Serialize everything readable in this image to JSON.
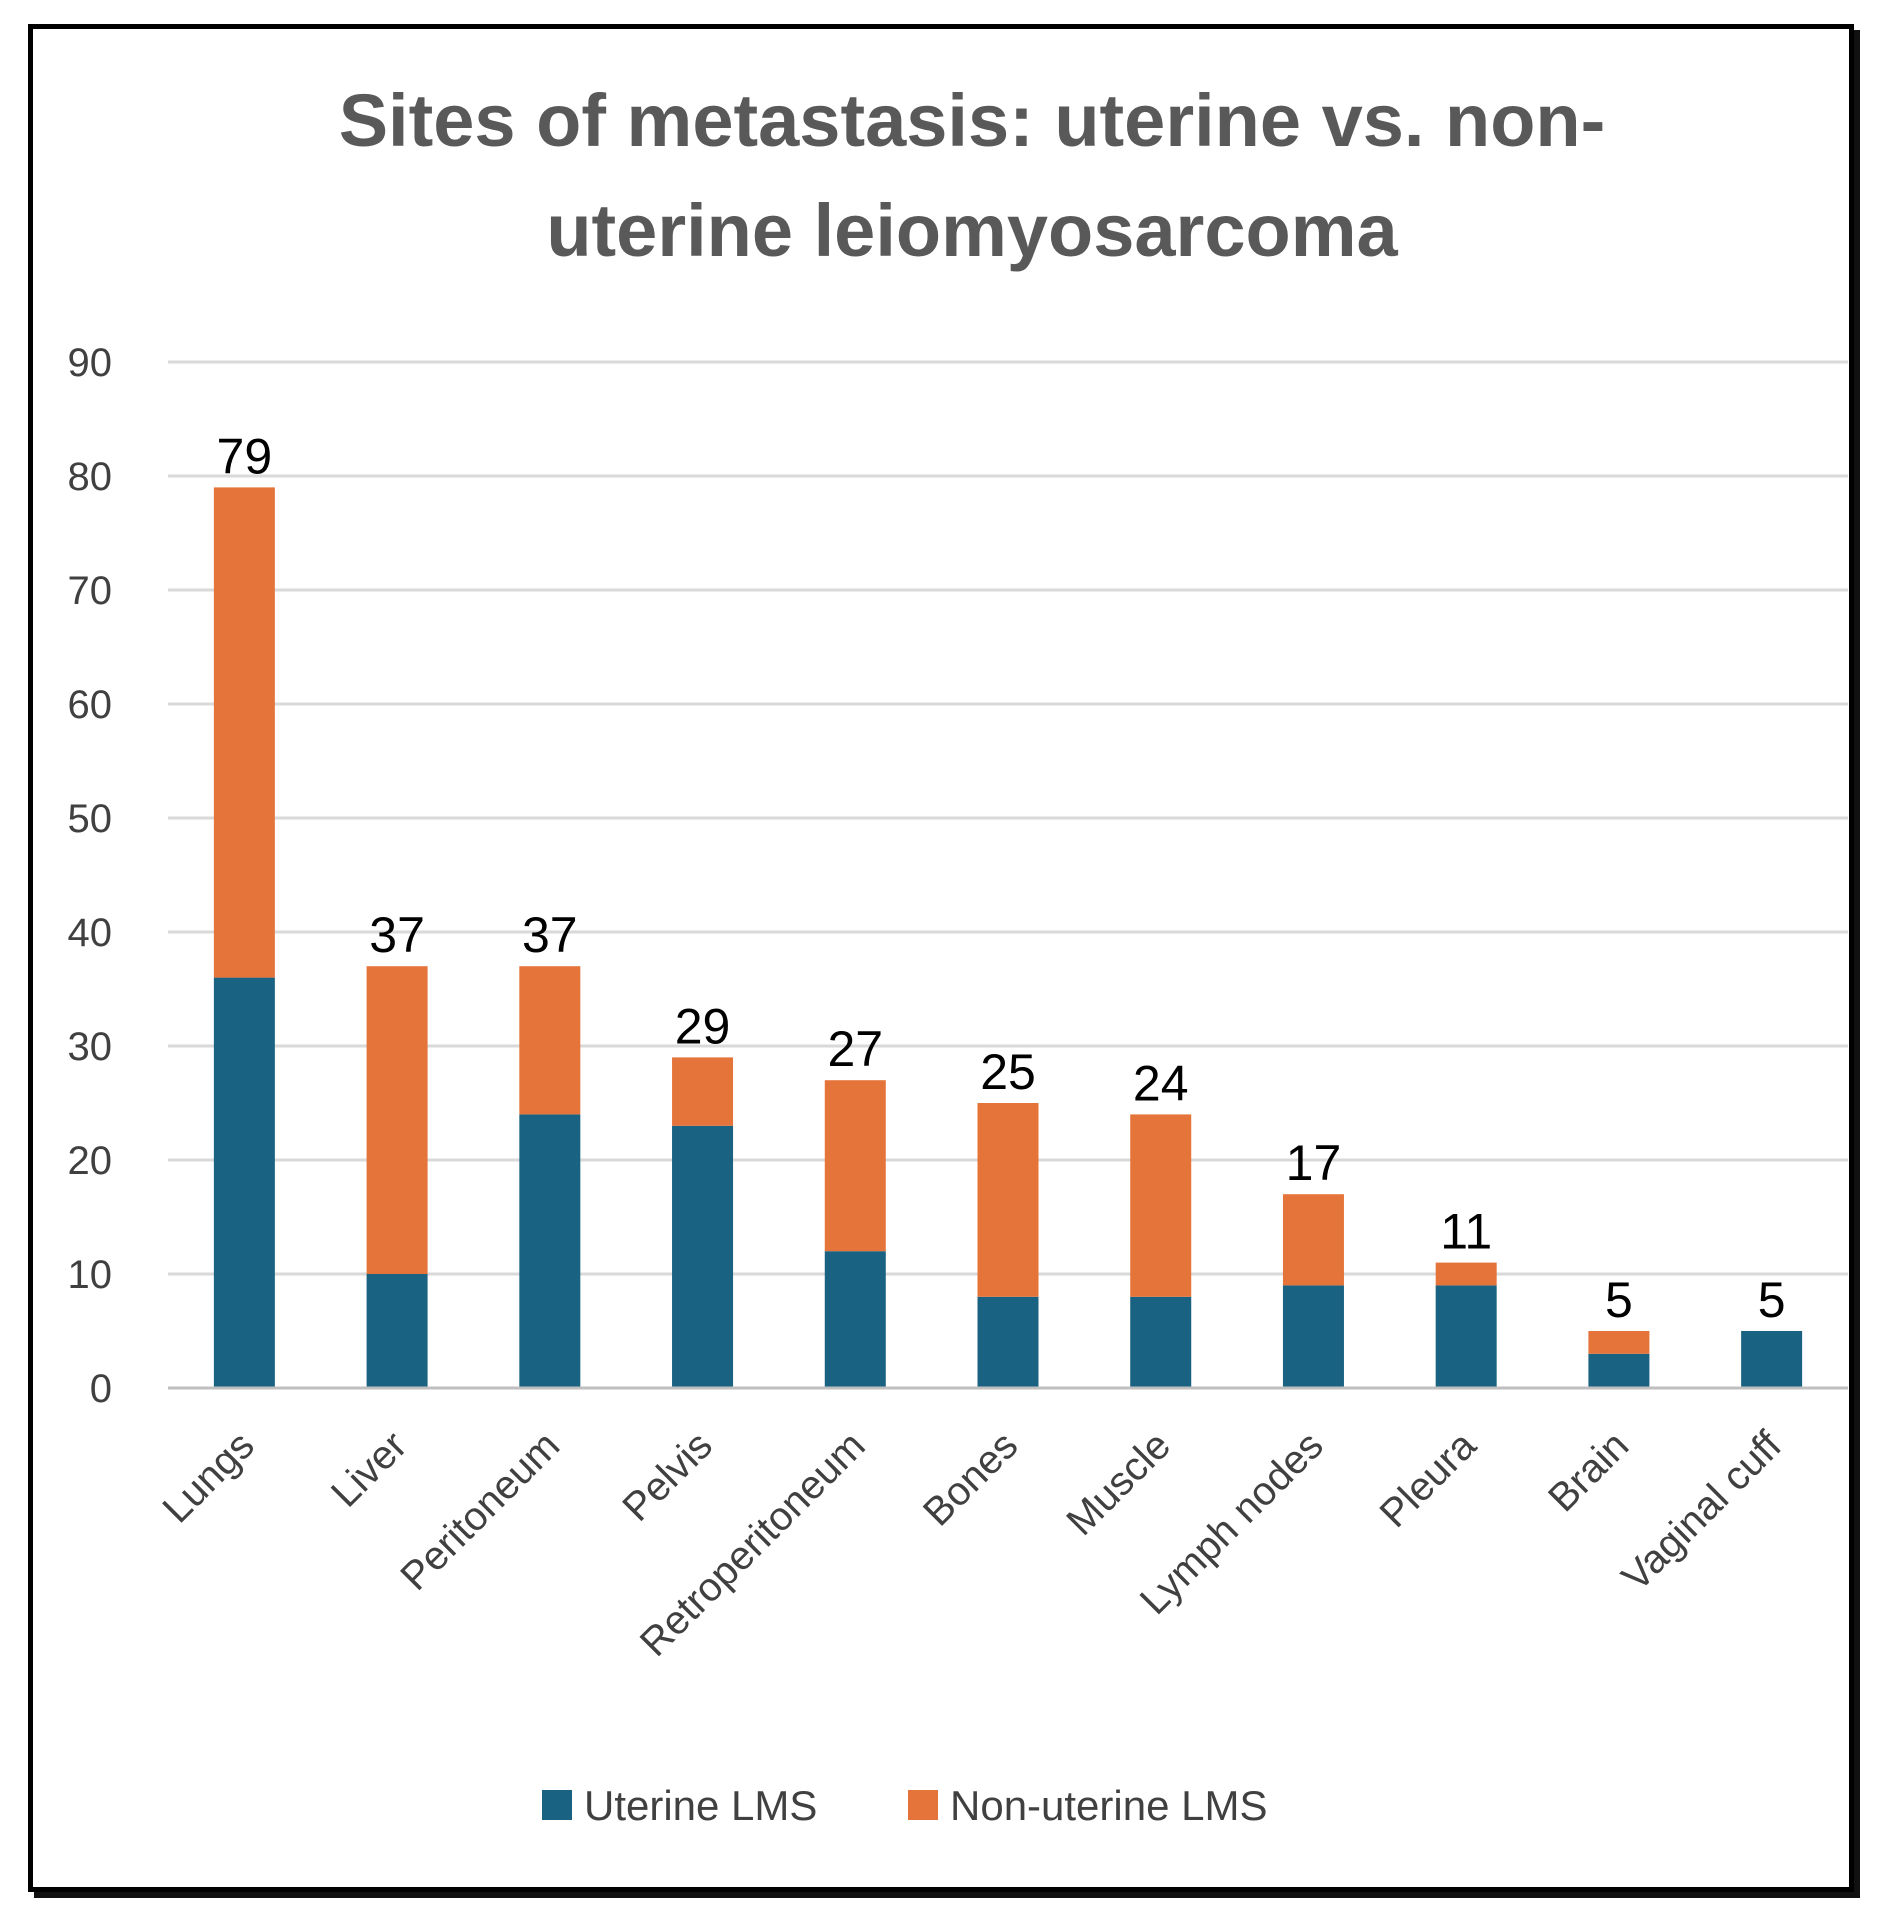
{
  "chart_data": {
    "type": "bar",
    "stacked": true,
    "title": "Sites of metastasis: uterine vs. non-uterine leiomyosarcoma",
    "title_lines": [
      "Sites of metastasis: uterine vs. non-",
      "uterine leiomyosarcoma"
    ],
    "categories": [
      "Lungs",
      "Liver",
      "Peritoneum",
      "Pelvis",
      "Retroperitoneum",
      "Bones",
      "Muscle",
      "Lymph nodes",
      "Pleura",
      "Brain",
      "Vaginal cuff"
    ],
    "series": [
      {
        "name": "Uterine LMS",
        "color": "#1a6282",
        "values": [
          36,
          10,
          24,
          23,
          12,
          8,
          8,
          9,
          9,
          3,
          5
        ]
      },
      {
        "name": "Non-uterine LMS",
        "color": "#e5743a",
        "values": [
          43,
          27,
          13,
          6,
          15,
          17,
          16,
          8,
          2,
          2,
          0
        ]
      }
    ],
    "totals": [
      "79",
      "37",
      "37",
      "29",
      "27",
      "25",
      "24",
      "17",
      "11",
      "5",
      "5"
    ],
    "ylim": [
      0,
      90
    ],
    "yticks": [
      "0",
      "10",
      "20",
      "30",
      "40",
      "50",
      "60",
      "70",
      "80",
      "90"
    ],
    "grid": true,
    "legend_position": "bottom",
    "xlabel": "",
    "ylabel": ""
  }
}
